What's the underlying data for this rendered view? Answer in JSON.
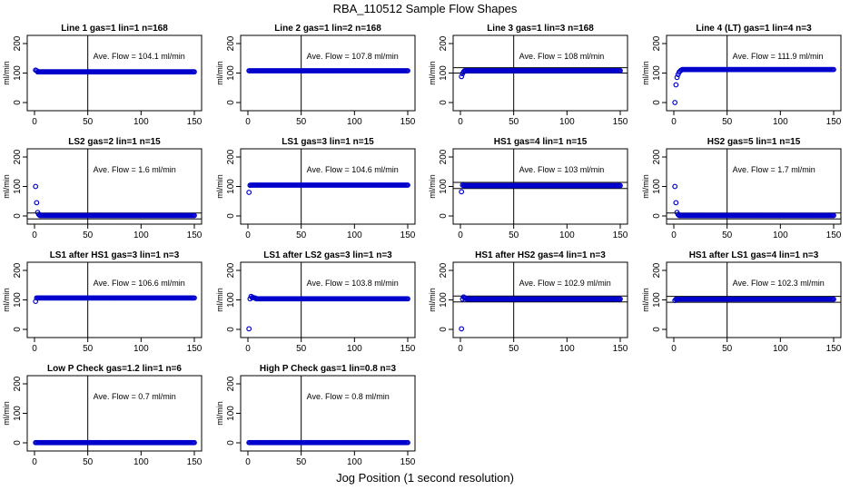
{
  "page": {
    "title": "RBA_110512  Sample Flow Shapes",
    "xlabel": "Jog Position (1 second resolution)"
  },
  "colors": {
    "points": "#0000cc",
    "axes": "#000000"
  },
  "chart_data": [
    {
      "type": "scatter",
      "title": "Line 1 gas=1 lin=1 n=168",
      "ylabel": "ml/min",
      "annotation": "Ave. Flow = 104.1  ml/min",
      "mean": 104.1,
      "xlim": [
        0,
        150
      ],
      "ylim": [
        0,
        200
      ],
      "xticks": [
        0,
        50,
        100,
        150
      ],
      "yticks": [
        0,
        100,
        200
      ],
      "vline": 50,
      "hlines": [],
      "start": [
        [
          1,
          110
        ],
        [
          2,
          108
        ]
      ]
    },
    {
      "type": "scatter",
      "title": "Line 2 gas=1 lin=2 n=168",
      "ylabel": "ml/min",
      "annotation": "Ave. Flow = 107.8  ml/min",
      "mean": 107.8,
      "xlim": [
        0,
        150
      ],
      "ylim": [
        0,
        200
      ],
      "xticks": [
        0,
        50,
        100,
        150
      ],
      "yticks": [
        0,
        100,
        200
      ],
      "vline": 50,
      "hlines": [],
      "start": []
    },
    {
      "type": "scatter",
      "title": "Line 3 gas=1 lin=3 n=168",
      "ylabel": "ml/min",
      "annotation": "Ave. Flow = 108  ml/min",
      "mean": 108,
      "xlim": [
        0,
        150
      ],
      "ylim": [
        0,
        200
      ],
      "xticks": [
        0,
        50,
        100,
        150
      ],
      "yticks": [
        0,
        100,
        200
      ],
      "vline": 50,
      "hlines": [
        100,
        118
      ],
      "start": [
        [
          1,
          88
        ],
        [
          2,
          98
        ],
        [
          3,
          104
        ]
      ]
    },
    {
      "type": "scatter",
      "title": "Line 4 (LT) gas=1 lin=4 n=3",
      "ylabel": "ml/min",
      "annotation": "Ave. Flow = 111.9  ml/min",
      "mean": 111.9,
      "xlim": [
        0,
        150
      ],
      "ylim": [
        0,
        200
      ],
      "xticks": [
        0,
        50,
        100,
        150
      ],
      "yticks": [
        0,
        100,
        200
      ],
      "vline": 50,
      "hlines": [],
      "start": [
        [
          1,
          0
        ],
        [
          2,
          60
        ],
        [
          3,
          85
        ],
        [
          4,
          95
        ],
        [
          5,
          103
        ],
        [
          6,
          107
        ],
        [
          7,
          110
        ]
      ]
    },
    {
      "type": "scatter",
      "title": "LS2 gas=2 lin=1 n=15",
      "ylabel": "ml/min",
      "annotation": "Ave. Flow = 1.6  ml/min",
      "mean": 1.6,
      "xlim": [
        0,
        150
      ],
      "ylim": [
        0,
        200
      ],
      "xticks": [
        0,
        50,
        100,
        150
      ],
      "yticks": [
        0,
        100,
        200
      ],
      "vline": 50,
      "hlines": [
        -10,
        10
      ],
      "start": [
        [
          1,
          100
        ],
        [
          2,
          45
        ],
        [
          3,
          12
        ],
        [
          4,
          5
        ]
      ]
    },
    {
      "type": "scatter",
      "title": "LS1 gas=3 lin=1 n=15",
      "ylabel": "ml/min",
      "annotation": "Ave. Flow = 104.6  ml/min",
      "mean": 104.6,
      "xlim": [
        0,
        150
      ],
      "ylim": [
        0,
        200
      ],
      "xticks": [
        0,
        50,
        100,
        150
      ],
      "yticks": [
        0,
        100,
        200
      ],
      "vline": 50,
      "hlines": [],
      "start": [
        [
          1,
          80
        ],
        [
          2,
          104
        ]
      ]
    },
    {
      "type": "scatter",
      "title": "HS1 gas=4 lin=1 n=15",
      "ylabel": "ml/min",
      "annotation": "Ave. Flow = 103  ml/min",
      "mean": 103,
      "xlim": [
        0,
        150
      ],
      "ylim": [
        0,
        200
      ],
      "xticks": [
        0,
        50,
        100,
        150
      ],
      "yticks": [
        0,
        100,
        200
      ],
      "vline": 50,
      "hlines": [
        93,
        114
      ],
      "start": [
        [
          1,
          82
        ],
        [
          2,
          105
        ]
      ]
    },
    {
      "type": "scatter",
      "title": "HS2 gas=5 lin=1 n=15",
      "ylabel": "ml/min",
      "annotation": "Ave. Flow = 1.7  ml/min",
      "mean": 1.7,
      "xlim": [
        0,
        150
      ],
      "ylim": [
        0,
        200
      ],
      "xticks": [
        0,
        50,
        100,
        150
      ],
      "yticks": [
        0,
        100,
        200
      ],
      "vline": 50,
      "hlines": [
        -10,
        10
      ],
      "start": [
        [
          1,
          100
        ],
        [
          2,
          45
        ],
        [
          3,
          12
        ],
        [
          4,
          5
        ]
      ]
    },
    {
      "type": "scatter",
      "title": "LS1 after HS1 gas=3 lin=1 n=3",
      "ylabel": "ml/min",
      "annotation": "Ave. Flow = 106.6  ml/min",
      "mean": 106.6,
      "xlim": [
        0,
        150
      ],
      "ylim": [
        0,
        200
      ],
      "xticks": [
        0,
        50,
        100,
        150
      ],
      "yticks": [
        0,
        100,
        200
      ],
      "vline": 50,
      "hlines": [],
      "start": [
        [
          1,
          95
        ]
      ]
    },
    {
      "type": "scatter",
      "title": "LS1 after LS2 gas=3 lin=1 n=3",
      "ylabel": "ml/min",
      "annotation": "Ave. Flow = 103.8  ml/min",
      "mean": 103.8,
      "xlim": [
        0,
        150
      ],
      "ylim": [
        0,
        200
      ],
      "xticks": [
        0,
        50,
        100,
        150
      ],
      "yticks": [
        0,
        100,
        200
      ],
      "vline": 50,
      "hlines": [],
      "start": [
        [
          1,
          2
        ],
        [
          3,
          112
        ],
        [
          4,
          108
        ],
        [
          5,
          108
        ],
        [
          6,
          107
        ],
        [
          7,
          106
        ]
      ]
    },
    {
      "type": "scatter",
      "title": "HS1 after HS2 gas=4 lin=1 n=3",
      "ylabel": "ml/min",
      "annotation": "Ave. Flow = 102.9  ml/min",
      "mean": 102.9,
      "xlim": [
        0,
        150
      ],
      "ylim": [
        0,
        200
      ],
      "xticks": [
        0,
        50,
        100,
        150
      ],
      "yticks": [
        0,
        100,
        200
      ],
      "vline": 50,
      "hlines": [
        93,
        113
      ],
      "start": [
        [
          1,
          2
        ],
        [
          3,
          110
        ],
        [
          4,
          106
        ],
        [
          5,
          105
        ]
      ]
    },
    {
      "type": "scatter",
      "title": "HS1 after LS1 gas=4 lin=1 n=3",
      "ylabel": "ml/min",
      "annotation": "Ave. Flow = 102.3  ml/min",
      "mean": 102.3,
      "xlim": [
        0,
        150
      ],
      "ylim": [
        0,
        200
      ],
      "xticks": [
        0,
        50,
        100,
        150
      ],
      "yticks": [
        0,
        100,
        200
      ],
      "vline": 50,
      "hlines": [
        92,
        112
      ],
      "start": [
        [
          1,
          98
        ]
      ]
    },
    {
      "type": "scatter",
      "title": "Low P Check gas=1.2 lin=1 n=6",
      "ylabel": "ml/min",
      "annotation": "Ave. Flow = 0.7  ml/min",
      "mean": 0.7,
      "xlim": [
        0,
        150
      ],
      "ylim": [
        0,
        200
      ],
      "xticks": [
        0,
        50,
        100,
        150
      ],
      "yticks": [
        0,
        100,
        200
      ],
      "vline": 50,
      "hlines": [],
      "start": []
    },
    {
      "type": "scatter",
      "title": "High P Check gas=1 lin=0.8 n=3",
      "ylabel": "ml/min",
      "annotation": "Ave. Flow = 0.8  ml/min",
      "mean": 0.8,
      "xlim": [
        0,
        150
      ],
      "ylim": [
        0,
        200
      ],
      "xticks": [
        0,
        50,
        100,
        150
      ],
      "yticks": [
        0,
        100,
        200
      ],
      "vline": 50,
      "hlines": [],
      "start": []
    }
  ]
}
